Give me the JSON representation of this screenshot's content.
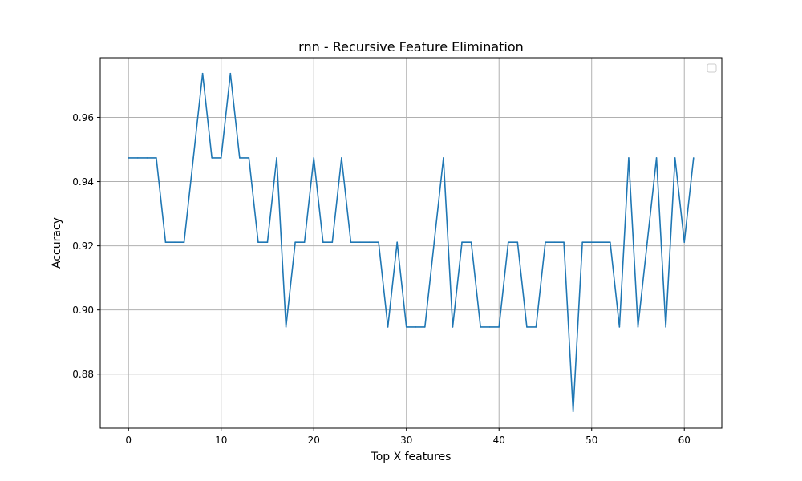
{
  "chart_data": {
    "type": "line",
    "title": "rnn - Recursive Feature Elimination",
    "xlabel": "Top X features",
    "ylabel": "Accuracy",
    "xlim": [
      -3.05,
      64.05
    ],
    "ylim": [
      0.8632,
      0.9786
    ],
    "xticks": [
      0,
      10,
      20,
      30,
      40,
      50,
      60
    ],
    "yticks": [
      0.88,
      0.9,
      0.92,
      0.94,
      0.96
    ],
    "ytick_labels": [
      "0.88",
      "0.90",
      "0.92",
      "0.94",
      "0.96"
    ],
    "grid": true,
    "legend": {
      "placement": "top-right",
      "entries": []
    },
    "line_color": "#1f77b4",
    "series": [
      {
        "x": [
          0,
          1,
          2,
          3,
          4,
          5,
          6,
          7,
          8,
          9,
          10,
          11,
          12,
          13,
          14,
          15,
          16,
          17,
          18,
          19,
          20,
          21,
          22,
          23,
          24,
          25,
          26,
          27,
          28,
          29,
          30,
          31,
          32,
          33,
          34,
          35,
          36,
          37,
          38,
          39,
          40,
          41,
          42,
          43,
          44,
          45,
          46,
          47,
          48,
          49,
          50,
          51,
          52,
          53,
          54,
          55,
          56,
          57,
          58,
          59,
          60,
          61
        ],
        "values": [
          0.9474,
          0.9474,
          0.9474,
          0.9474,
          0.9211,
          0.9211,
          0.9211,
          0.9474,
          0.9737,
          0.9474,
          0.9474,
          0.9737,
          0.9474,
          0.9474,
          0.9211,
          0.9211,
          0.9474,
          0.8947,
          0.9211,
          0.9211,
          0.9474,
          0.9211,
          0.9211,
          0.9474,
          0.9211,
          0.9211,
          0.9211,
          0.9211,
          0.8947,
          0.9211,
          0.8947,
          0.8947,
          0.8947,
          0.9211,
          0.9474,
          0.8947,
          0.9211,
          0.9211,
          0.8947,
          0.8947,
          0.8947,
          0.9211,
          0.9211,
          0.8947,
          0.8947,
          0.9211,
          0.9211,
          0.9211,
          0.8684,
          0.9211,
          0.9211,
          0.9211,
          0.9211,
          0.8947,
          0.9474,
          0.8947,
          0.9211,
          0.9474,
          0.8947,
          0.9474,
          0.9211,
          0.9474
        ]
      }
    ]
  }
}
